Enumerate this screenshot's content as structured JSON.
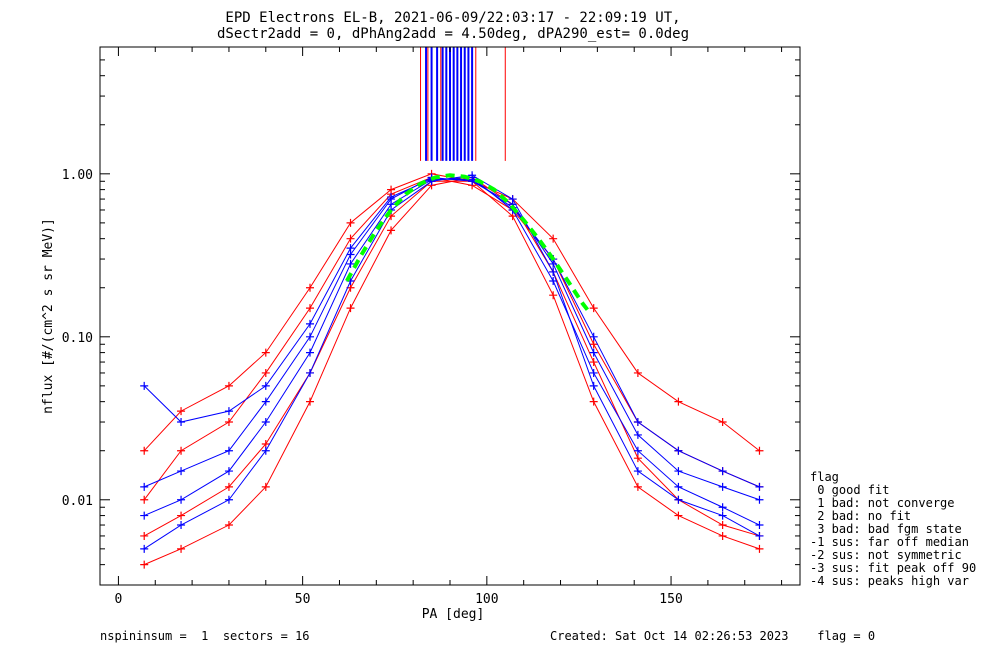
{
  "chart_data": {
    "type": "line",
    "title": "EPD Electrons EL-B, 2021-06-09/22:03:17 - 22:09:19 UT,",
    "subtitle": "dSectr2add = 0, dPhAng2add = 4.50deg, dPA290_est=    0.0deg",
    "xlabel": "PA [deg]",
    "ylabel": "nflux [#/(cm^2 s sr MeV)]",
    "xlim": [
      -5,
      185
    ],
    "ylim": [
      0.003,
      6
    ],
    "yscale": "log",
    "x_ticks": [
      "0",
      "50",
      "100",
      "150"
    ],
    "x_tick_values": [
      0,
      50,
      100,
      150
    ],
    "y_ticks": [
      "0.01",
      "0.10",
      "1.00"
    ],
    "y_tick_values": [
      0.01,
      0.1,
      1.0
    ],
    "series_colors": {
      "red": "#ff0000",
      "blue": "#0000ff",
      "fit": "#00ff00"
    },
    "series": [
      {
        "color": "red",
        "x": [
          7,
          17,
          30,
          40,
          52,
          63,
          74,
          85,
          96,
          107,
          118,
          129,
          141,
          152,
          164,
          174
        ],
        "y": [
          0.006,
          0.008,
          0.012,
          0.022,
          0.06,
          0.2,
          0.55,
          0.9,
          0.9,
          0.55,
          0.18,
          0.04,
          0.012,
          0.008,
          0.006,
          0.005
        ]
      },
      {
        "color": "red",
        "x": [
          7,
          17,
          30,
          40,
          52,
          63,
          74,
          85,
          96,
          107,
          118,
          129,
          141,
          152,
          164,
          174
        ],
        "y": [
          0.01,
          0.02,
          0.03,
          0.06,
          0.15,
          0.4,
          0.75,
          0.95,
          0.85,
          0.6,
          0.3,
          0.09,
          0.03,
          0.02,
          0.015,
          0.012
        ]
      },
      {
        "color": "red",
        "x": [
          7,
          17,
          30,
          40,
          52,
          63,
          74,
          85,
          96,
          107,
          118,
          129,
          141,
          152,
          164,
          174
        ],
        "y": [
          0.004,
          0.005,
          0.007,
          0.012,
          0.04,
          0.15,
          0.45,
          0.85,
          0.95,
          0.65,
          0.25,
          0.07,
          0.018,
          0.01,
          0.007,
          0.006
        ]
      },
      {
        "color": "red",
        "x": [
          7,
          17,
          30,
          40,
          52,
          63,
          74,
          85,
          96,
          107,
          118,
          129,
          141,
          152,
          164,
          174
        ],
        "y": [
          0.02,
          0.035,
          0.05,
          0.08,
          0.2,
          0.5,
          0.8,
          1.0,
          0.9,
          0.7,
          0.4,
          0.15,
          0.06,
          0.04,
          0.03,
          0.02
        ]
      },
      {
        "color": "blue",
        "x": [
          7,
          17,
          30,
          40,
          52,
          63,
          74,
          85,
          96,
          107,
          118,
          129,
          141,
          152,
          164,
          174
        ],
        "y": [
          0.008,
          0.01,
          0.015,
          0.03,
          0.08,
          0.28,
          0.65,
          0.92,
          0.95,
          0.6,
          0.22,
          0.06,
          0.02,
          0.012,
          0.009,
          0.007
        ]
      },
      {
        "color": "blue",
        "x": [
          7,
          17,
          30,
          40,
          52,
          63,
          74,
          85,
          96,
          107,
          118,
          129,
          141,
          152,
          164,
          174
        ],
        "y": [
          0.012,
          0.015,
          0.02,
          0.04,
          0.1,
          0.32,
          0.7,
          0.95,
          0.9,
          0.65,
          0.28,
          0.08,
          0.025,
          0.015,
          0.012,
          0.01
        ]
      },
      {
        "color": "blue",
        "x": [
          7,
          17,
          30,
          40,
          52,
          63,
          74,
          85,
          96,
          107,
          118,
          129,
          141,
          152,
          164,
          174
        ],
        "y": [
          0.005,
          0.007,
          0.01,
          0.02,
          0.06,
          0.22,
          0.6,
          0.9,
          0.98,
          0.7,
          0.25,
          0.05,
          0.015,
          0.01,
          0.008,
          0.006
        ]
      },
      {
        "color": "blue",
        "x": [
          7,
          17,
          30,
          40,
          52,
          63,
          74,
          85,
          96,
          107,
          118,
          129,
          141,
          152,
          164,
          174
        ],
        "y": [
          0.05,
          0.03,
          0.035,
          0.05,
          0.12,
          0.35,
          0.72,
          0.93,
          0.92,
          0.62,
          0.3,
          0.1,
          0.03,
          0.02,
          0.015,
          0.012
        ]
      },
      {
        "color": "fit",
        "x": [
          62,
          66,
          70,
          74,
          78,
          82,
          86,
          90,
          94,
          98,
          102,
          106,
          110,
          114,
          118,
          122,
          126,
          128
        ],
        "y": [
          0.22,
          0.32,
          0.45,
          0.6,
          0.75,
          0.87,
          0.95,
          0.98,
          0.96,
          0.9,
          0.8,
          0.66,
          0.52,
          0.4,
          0.3,
          0.22,
          0.16,
          0.14
        ]
      }
    ]
  },
  "legend": {
    "heading": "flag",
    "items": [
      " 0 good fit",
      " 1 bad: not converge",
      " 2 bad: no fit",
      " 3 bad: bad fgm state",
      "-1 sus: far off median",
      "-2 sus: not symmetric",
      "-3 sus: fit peak off 90",
      "-4 sus: peaks high var"
    ]
  },
  "footer": {
    "left": "nspininsum =  1  sectors = 16",
    "right": "Created: Sat Oct 14 02:26:53 2023    flag = 0"
  }
}
